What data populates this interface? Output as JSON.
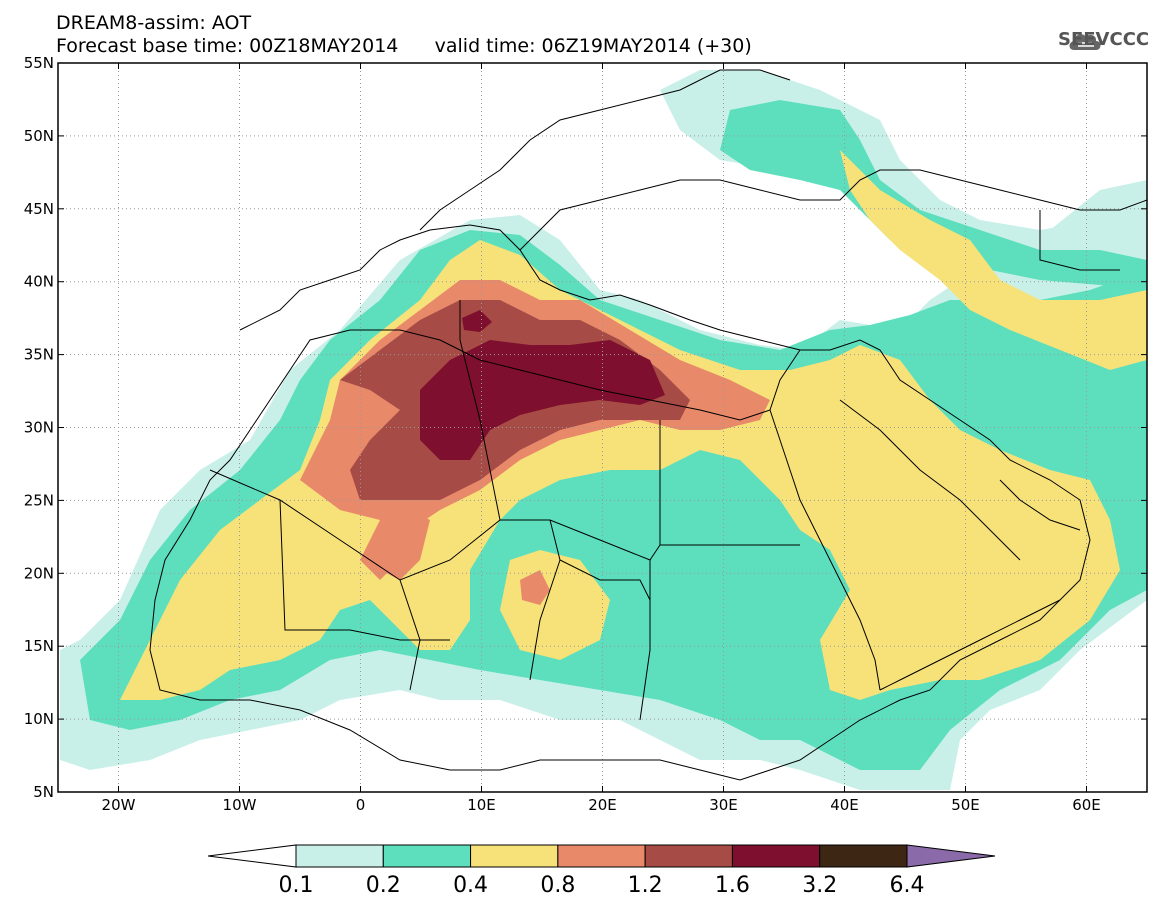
{
  "header": {
    "model": "DREAM8-assim: AOT",
    "base_time_label": "Forecast base time: 00Z18MAY2014",
    "valid_time_label": "valid time: 06Z19MAY2014 (+30)"
  },
  "logo": {
    "text": "SEEVCCC",
    "icon": "cloud-icon"
  },
  "map": {
    "lon_range": [
      -25,
      65
    ],
    "lat_range": [
      5,
      55
    ],
    "lat_ticks": [
      "55N",
      "50N",
      "45N",
      "40N",
      "35N",
      "30N",
      "25N",
      "20N",
      "15N",
      "10N",
      "5N"
    ],
    "lon_ticks": [
      "20W",
      "10W",
      "0",
      "10E",
      "20E",
      "30E",
      "40E",
      "50E",
      "60E"
    ],
    "grid": "dotted"
  },
  "colorbar": {
    "levels": [
      "0.1",
      "0.2",
      "0.4",
      "0.8",
      "1.2",
      "1.6",
      "3.2",
      "6.4"
    ],
    "colors": [
      "#ffffff",
      "#c8f0e8",
      "#5ddfbd",
      "#f7e27a",
      "#e8896a",
      "#a64b45",
      "#7f0f2e",
      "#3d2614",
      "#8a6aa8"
    ]
  }
}
